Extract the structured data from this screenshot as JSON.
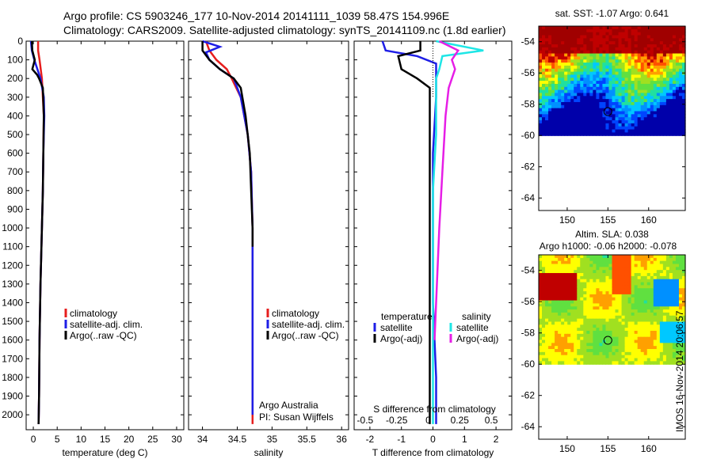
{
  "header": {
    "line1": "Argo profile: CS 5903246_177 10-Nov-2014 20141111_1039 58.47S 154.996E",
    "line2": "Climatology: CARS2009. Satellite-adjusted climatology: synTS_20141109.nc (1.8d earlier)"
  },
  "side_text": "IMOS 16-Nov-2014 20:06:57",
  "colors": {
    "climatology": "#e61e1e",
    "satellite": "#1e1ee6",
    "argo": "#000000",
    "sat_salinity": "#1ee6e6",
    "argo_salinity": "#e61ee6"
  },
  "chart_data": [
    {
      "type": "line",
      "panel": "temperature",
      "xlabel": "temperature (deg C)",
      "ylabel": "",
      "xlim": [
        -1.5,
        31.5
      ],
      "ylim": [
        2080,
        0
      ],
      "xticks": [
        0,
        5,
        10,
        15,
        20,
        25,
        30
      ],
      "yticks": [
        0,
        100,
        200,
        300,
        400,
        500,
        600,
        700,
        800,
        900,
        1000,
        1100,
        1200,
        1300,
        1400,
        1500,
        1600,
        1700,
        1800,
        1900,
        2000
      ],
      "legend": {
        "placement": "center-right",
        "entries": [
          "climatology",
          "satellite-adj. clim.",
          "Argo(..raw -QC)"
        ]
      },
      "series": [
        {
          "name": "climatology",
          "color": "#e61e1e",
          "x": [
            1.0,
            1.0,
            1.3,
            1.8,
            2.0,
            2.2,
            2.1,
            2.0,
            1.8,
            1.5,
            1.3,
            1.2,
            1.1
          ],
          "y": [
            0,
            50,
            100,
            200,
            300,
            400,
            600,
            800,
            1000,
            1300,
            1600,
            1900,
            2050
          ]
        },
        {
          "name": "satellite-adj. clim.",
          "color": "#1e1ee6",
          "x": [
            -0.5,
            -0.3,
            0.2,
            1.5,
            2.2,
            2.3,
            2.1,
            2.0,
            1.8,
            1.5,
            1.3,
            1.2,
            1.1
          ],
          "y": [
            0,
            50,
            100,
            200,
            300,
            400,
            600,
            800,
            1000,
            1300,
            1600,
            1900,
            2050
          ]
        },
        {
          "name": "Argo(..raw -QC)",
          "color": "#000000",
          "x": [
            -0.3,
            -0.2,
            0.3,
            -0.2,
            0.8,
            1.2,
            2.0,
            2.2,
            2.1,
            2.0,
            1.8,
            1.5,
            1.3,
            1.2,
            1.1
          ],
          "y": [
            0,
            50,
            100,
            150,
            180,
            200,
            250,
            400,
            600,
            800,
            1000,
            1300,
            1600,
            1900,
            2050
          ]
        }
      ]
    },
    {
      "type": "line",
      "panel": "salinity",
      "xlabel": "salinity",
      "ylabel": "",
      "xlim": [
        33.8,
        36.1
      ],
      "ylim": [
        2080,
        0
      ],
      "xticks": [
        34,
        34.5,
        35,
        35.5,
        36
      ],
      "xtick_labels": [
        "34",
        "34.5",
        "35",
        "35.5",
        "36"
      ],
      "legend": {
        "placement": "center-right",
        "entries": [
          "climatology",
          "satellite-adj. clim.",
          "Argo(..raw -QC)"
        ]
      },
      "annotation": [
        "Argo Australia",
        "PI: Susan Wijffels"
      ],
      "series": [
        {
          "name": "climatology",
          "color": "#e61e1e",
          "x": [
            34.05,
            34.1,
            34.2,
            34.35,
            34.42,
            34.55,
            34.65,
            34.7,
            34.72,
            34.72,
            34.72,
            34.72
          ],
          "y": [
            0,
            50,
            100,
            150,
            200,
            300,
            500,
            700,
            1000,
            1400,
            1800,
            2050
          ]
        },
        {
          "name": "satellite-adj. clim.",
          "color": "#1e1ee6",
          "x": [
            34.0,
            34.25,
            34.05,
            34.1,
            34.25,
            34.45,
            34.55,
            34.65,
            34.7,
            34.72,
            34.72,
            34.72,
            34.72
          ],
          "y": [
            0,
            30,
            60,
            100,
            150,
            200,
            300,
            500,
            700,
            1000,
            1400,
            1800,
            2000
          ]
        },
        {
          "name": "Argo(..raw -QC)",
          "color": "#000000",
          "x": [
            34.0,
            34.0,
            34.1,
            34.25,
            34.45,
            34.55,
            34.62,
            34.68,
            34.7,
            34.72,
            34.72
          ],
          "y": [
            0,
            50,
            100,
            150,
            200,
            250,
            400,
            600,
            800,
            1000,
            1100
          ]
        }
      ]
    },
    {
      "type": "line",
      "panel": "difference",
      "xlabel": "T difference from climatology",
      "x2label": "S difference from climatology",
      "ylabel": "",
      "xlim": [
        -2.5,
        2.5
      ],
      "ylim": [
        2080,
        0
      ],
      "xticks": [
        -2,
        -1,
        0,
        1,
        2
      ],
      "x2ticks": [
        "-0.5",
        "-0.25",
        "0",
        "0.25",
        "0.5"
      ],
      "legend": {
        "placement": "center",
        "entries": [
          "temperature",
          "satellite",
          "Argo(-adj)",
          "salinity",
          "satellite",
          "Argo(-adj)"
        ]
      },
      "series": [
        {
          "name": "satellite",
          "color": "#1e1ee6",
          "x": [
            -1.6,
            -1.5,
            -0.5,
            0.1,
            0.1,
            0.0,
            0.0,
            0.0,
            0.1,
            0.1
          ],
          "y": [
            0,
            50,
            80,
            120,
            300,
            600,
            1000,
            1400,
            1800,
            2050
          ]
        },
        {
          "name": "Argo(-adj)",
          "color": "#000000",
          "x": [
            -0.4,
            -0.4,
            -1.1,
            -1.0,
            -0.5,
            -0.1,
            -0.1,
            -0.1,
            -0.1,
            -0.1,
            -0.1
          ],
          "y": [
            0,
            50,
            80,
            150,
            200,
            250,
            400,
            800,
            1200,
            1600,
            2050
          ]
        },
        {
          "name": "satellite",
          "color": "#1ee6e6",
          "x": [
            0.1,
            1.6,
            0.3,
            0.2,
            0.1,
            0.1,
            0.1,
            0.0,
            0.0,
            0.0
          ],
          "y": [
            0,
            50,
            80,
            150,
            200,
            300,
            500,
            800,
            1200,
            2050
          ]
        },
        {
          "name": "Argo(-adj)",
          "color": "#e61ee6",
          "x": [
            0.2,
            0.8,
            0.6,
            0.7,
            0.6,
            0.5,
            0.4,
            0.3,
            0.2,
            0.1,
            0.05
          ],
          "y": [
            0,
            50,
            100,
            150,
            200,
            250,
            400,
            700,
            1000,
            1400,
            1600
          ]
        }
      ]
    },
    {
      "type": "heatmap",
      "panel": "sst_map",
      "title": "sat. SST: -1.07 Argo: 0.641",
      "xlim": [
        146.5,
        164.5
      ],
      "ylim": [
        -64.8,
        -53
      ],
      "data_ylim": [
        -60,
        -53
      ],
      "xticks": [
        150,
        155,
        160
      ],
      "yticks": [
        -54,
        -56,
        -58,
        -60,
        -62,
        -64
      ],
      "marker": {
        "lon": 154.996,
        "lat": -58.47
      }
    },
    {
      "type": "heatmap",
      "panel": "sla_map",
      "title": "Altim. SLA: 0.038",
      "subtitle": "Argo h1000: -0.06 h2000: -0.078",
      "xlim": [
        146.5,
        164.5
      ],
      "ylim": [
        -64.8,
        -53
      ],
      "data_ylim": [
        -60,
        -53
      ],
      "xticks": [
        150,
        155,
        160
      ],
      "yticks": [
        -54,
        -56,
        -58,
        -60,
        -62,
        -64
      ],
      "marker": {
        "lon": 154.996,
        "lat": -58.47
      }
    }
  ]
}
